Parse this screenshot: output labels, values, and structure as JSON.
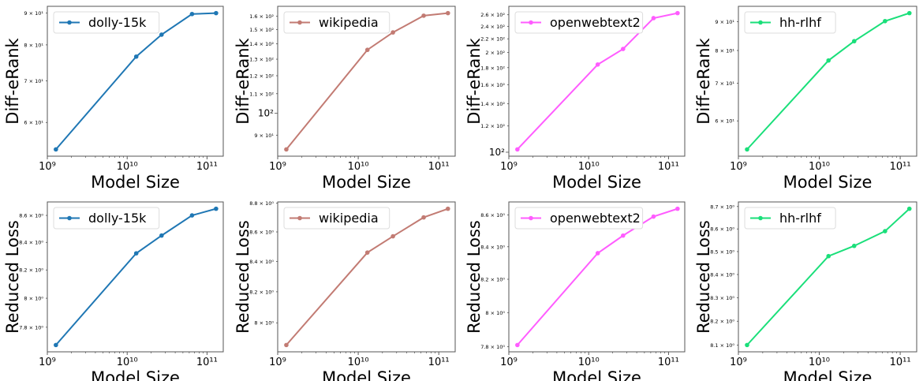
{
  "chart_data": [
    {
      "type": "line",
      "series": [
        {
          "name": "dolly-15k",
          "color": "#1f77b4",
          "x": [
            1280000000.0,
            13000000000.0,
            27000000000.0,
            65000000000.0,
            130000000000.0
          ],
          "y": [
            54.3,
            76.6,
            83.1,
            89.7,
            90.0
          ]
        }
      ],
      "xlabel": "Model Size",
      "ylabel": "Diff-eRank",
      "xscale": "log",
      "yscale": "log",
      "xlim": [
        1000000000.0,
        160000000000.0
      ],
      "xticks": [
        {
          "v": 1000000000.0,
          "label": "10⁹"
        },
        {
          "v": 10000000000.0,
          "label": "10¹⁰"
        },
        {
          "v": 100000000000.0,
          "label": "10¹¹"
        }
      ],
      "yticks": [
        {
          "v": 60,
          "label": "6 × 10¹"
        },
        {
          "v": 70,
          "label": "7 × 10¹"
        },
        {
          "v": 80,
          "label": "8 × 10¹"
        },
        {
          "v": 90,
          "label": "9 × 10¹"
        }
      ],
      "legend": "top-left",
      "grid": false
    },
    {
      "type": "line",
      "series": [
        {
          "name": "wikipedia",
          "color": "#c27b73",
          "x": [
            1280000000.0,
            13000000000.0,
            27000000000.0,
            65000000000.0,
            130000000000.0
          ],
          "y": [
            84,
            136,
            148,
            160.5,
            162.5
          ]
        }
      ],
      "xlabel": "Model Size",
      "ylabel": "Diff-eRank",
      "xscale": "log",
      "yscale": "log",
      "xlim": [
        1000000000.0,
        160000000000.0
      ],
      "xticks": [
        {
          "v": 1000000000.0,
          "label": "10⁹"
        },
        {
          "v": 10000000000.0,
          "label": "10¹⁰"
        },
        {
          "v": 100000000000.0,
          "label": "10¹¹"
        }
      ],
      "yticks": [
        {
          "v": 90,
          "label": "9 × 10¹"
        },
        {
          "v": 100,
          "label": "10²",
          "major": true
        },
        {
          "v": 110,
          "label": "1.1 × 10²"
        },
        {
          "v": 120,
          "label": "1.2 × 10²"
        },
        {
          "v": 130,
          "label": "1.3 × 10²"
        },
        {
          "v": 140,
          "label": "1.4 × 10²"
        },
        {
          "v": 150,
          "label": "1.5 × 10²"
        },
        {
          "v": 160,
          "label": "1.6 × 10²"
        }
      ],
      "legend": "top-left",
      "grid": false
    },
    {
      "type": "line",
      "series": [
        {
          "name": "openwebtext2",
          "color": "#ff5cff",
          "x": [
            1280000000.0,
            13000000000.0,
            27000000000.0,
            65000000000.0,
            130000000000.0
          ],
          "y": [
            102,
            184,
            205,
            254,
            263
          ]
        }
      ],
      "xlabel": "Model Size",
      "ylabel": "Diff-eRank",
      "xscale": "log",
      "yscale": "log",
      "xlim": [
        1000000000.0,
        160000000000.0
      ],
      "xticks": [
        {
          "v": 1000000000.0,
          "label": "10⁹"
        },
        {
          "v": 10000000000.0,
          "label": "10¹⁰"
        },
        {
          "v": 100000000000.0,
          "label": "10¹¹"
        }
      ],
      "yticks": [
        {
          "v": 100,
          "label": "10²",
          "major": true
        },
        {
          "v": 120,
          "label": "1.2 × 10²"
        },
        {
          "v": 140,
          "label": "1.4 × 10²"
        },
        {
          "v": 160,
          "label": "1.6 × 10²"
        },
        {
          "v": 180,
          "label": "1.8 × 10²"
        },
        {
          "v": 200,
          "label": "2 × 10²"
        },
        {
          "v": 220,
          "label": "2.2 × 10²"
        },
        {
          "v": 240,
          "label": "2.4 × 10²"
        },
        {
          "v": 260,
          "label": "2.6 × 10²"
        }
      ],
      "legend": "top-left",
      "grid": false
    },
    {
      "type": "line",
      "series": [
        {
          "name": "hh-rlhf",
          "color": "#1adf7a",
          "x": [
            1280000000.0,
            13000000000.0,
            27000000000.0,
            65000000000.0,
            130000000000.0
          ],
          "y": [
            53.4,
            76.8,
            83.1,
            90.2,
            93.2
          ]
        }
      ],
      "xlabel": "Model Size",
      "ylabel": "Diff-eRank",
      "xscale": "log",
      "yscale": "log",
      "xlim": [
        1000000000.0,
        160000000000.0
      ],
      "xticks": [
        {
          "v": 1000000000.0,
          "label": "10⁹"
        },
        {
          "v": 10000000000.0,
          "label": "10¹⁰"
        },
        {
          "v": 100000000000.0,
          "label": "10¹¹"
        }
      ],
      "yticks": [
        {
          "v": 60,
          "label": "6 × 10¹"
        },
        {
          "v": 70,
          "label": "7 × 10¹"
        },
        {
          "v": 80,
          "label": "8 × 10¹"
        },
        {
          "v": 90,
          "label": "9 × 10¹"
        }
      ],
      "legend": "top-left",
      "grid": false
    },
    {
      "type": "line",
      "series": [
        {
          "name": "dolly-15k",
          "color": "#1f77b4",
          "x": [
            1280000000.0,
            13000000000.0,
            27000000000.0,
            65000000000.0,
            130000000000.0
          ],
          "y": [
            7.68,
            8.32,
            8.45,
            8.6,
            8.65
          ]
        }
      ],
      "xlabel": "Model Size",
      "ylabel": "Reduced Loss",
      "xscale": "log",
      "yscale": "log",
      "xlim": [
        1000000000.0,
        160000000000.0
      ],
      "xticks": [
        {
          "v": 1000000000.0,
          "label": "10⁹"
        },
        {
          "v": 10000000000.0,
          "label": "10¹⁰"
        },
        {
          "v": 100000000000.0,
          "label": "10¹¹"
        }
      ],
      "yticks": [
        {
          "v": 7.8,
          "label": "7.8 × 10⁰"
        },
        {
          "v": 8.0,
          "label": "8 × 10⁰"
        },
        {
          "v": 8.2,
          "label": "8.2 × 10⁰"
        },
        {
          "v": 8.4,
          "label": "8.4 × 10⁰"
        },
        {
          "v": 8.6,
          "label": "8.6 × 10⁰"
        }
      ],
      "legend": "top-left",
      "grid": false
    },
    {
      "type": "line",
      "series": [
        {
          "name": "wikipedia",
          "color": "#c27b73",
          "x": [
            1280000000.0,
            13000000000.0,
            27000000000.0,
            65000000000.0,
            130000000000.0
          ],
          "y": [
            7.86,
            8.46,
            8.57,
            8.7,
            8.76
          ]
        }
      ],
      "xlabel": "Model Size",
      "ylabel": "Reduced Loss",
      "xscale": "log",
      "yscale": "log",
      "xlim": [
        1000000000.0,
        160000000000.0
      ],
      "xticks": [
        {
          "v": 1000000000.0,
          "label": "10⁹"
        },
        {
          "v": 10000000000.0,
          "label": "10¹⁰"
        },
        {
          "v": 100000000000.0,
          "label": "10¹¹"
        }
      ],
      "yticks": [
        {
          "v": 8.0,
          "label": "8 × 10⁰"
        },
        {
          "v": 8.2,
          "label": "8.2 × 10⁰"
        },
        {
          "v": 8.4,
          "label": "8.4 × 10⁰"
        },
        {
          "v": 8.6,
          "label": "8.6 × 10⁰"
        },
        {
          "v": 8.8,
          "label": "8.8 × 10⁰"
        }
      ],
      "legend": "top-left",
      "grid": false
    },
    {
      "type": "line",
      "series": [
        {
          "name": "openwebtext2",
          "color": "#ff5cff",
          "x": [
            1280000000.0,
            13000000000.0,
            27000000000.0,
            65000000000.0,
            130000000000.0
          ],
          "y": [
            7.81,
            8.36,
            8.47,
            8.59,
            8.64
          ]
        }
      ],
      "xlabel": "Model Size",
      "ylabel": "Reduced Loss",
      "xscale": "log",
      "yscale": "log",
      "xlim": [
        1000000000.0,
        160000000000.0
      ],
      "xticks": [
        {
          "v": 1000000000.0,
          "label": "10⁹"
        },
        {
          "v": 10000000000.0,
          "label": "10¹⁰"
        },
        {
          "v": 100000000000.0,
          "label": "10¹¹"
        }
      ],
      "yticks": [
        {
          "v": 7.8,
          "label": "7.8 × 10⁰"
        },
        {
          "v": 8.0,
          "label": "8 × 10⁰"
        },
        {
          "v": 8.2,
          "label": "8.2 × 10⁰"
        },
        {
          "v": 8.4,
          "label": "8.4 × 10⁰"
        },
        {
          "v": 8.6,
          "label": "8.6 × 10⁰"
        }
      ],
      "legend": "top-left",
      "grid": false
    },
    {
      "type": "line",
      "series": [
        {
          "name": "hh-rlhf",
          "color": "#1adf7a",
          "x": [
            1280000000.0,
            13000000000.0,
            27000000000.0,
            65000000000.0,
            130000000000.0
          ],
          "y": [
            8.1,
            8.48,
            8.525,
            8.59,
            8.69
          ]
        }
      ],
      "xlabel": "Model Size",
      "ylabel": "Reduced Loss",
      "xscale": "log",
      "yscale": "log",
      "xlim": [
        1000000000.0,
        160000000000.0
      ],
      "xticks": [
        {
          "v": 1000000000.0,
          "label": "10⁹"
        },
        {
          "v": 10000000000.0,
          "label": "10¹⁰"
        },
        {
          "v": 100000000000.0,
          "label": "10¹¹"
        }
      ],
      "yticks": [
        {
          "v": 8.1,
          "label": "8.1 × 10⁰"
        },
        {
          "v": 8.2,
          "label": "8.2 × 10⁰"
        },
        {
          "v": 8.3,
          "label": "8.3 × 10⁰"
        },
        {
          "v": 8.4,
          "label": "8.4 × 10⁰"
        },
        {
          "v": 8.5,
          "label": "8.5 × 10⁰"
        },
        {
          "v": 8.6,
          "label": "8.6 × 10⁰"
        },
        {
          "v": 8.7,
          "label": "8.7 × 10⁰"
        }
      ],
      "legend": "top-left",
      "grid": false
    }
  ]
}
